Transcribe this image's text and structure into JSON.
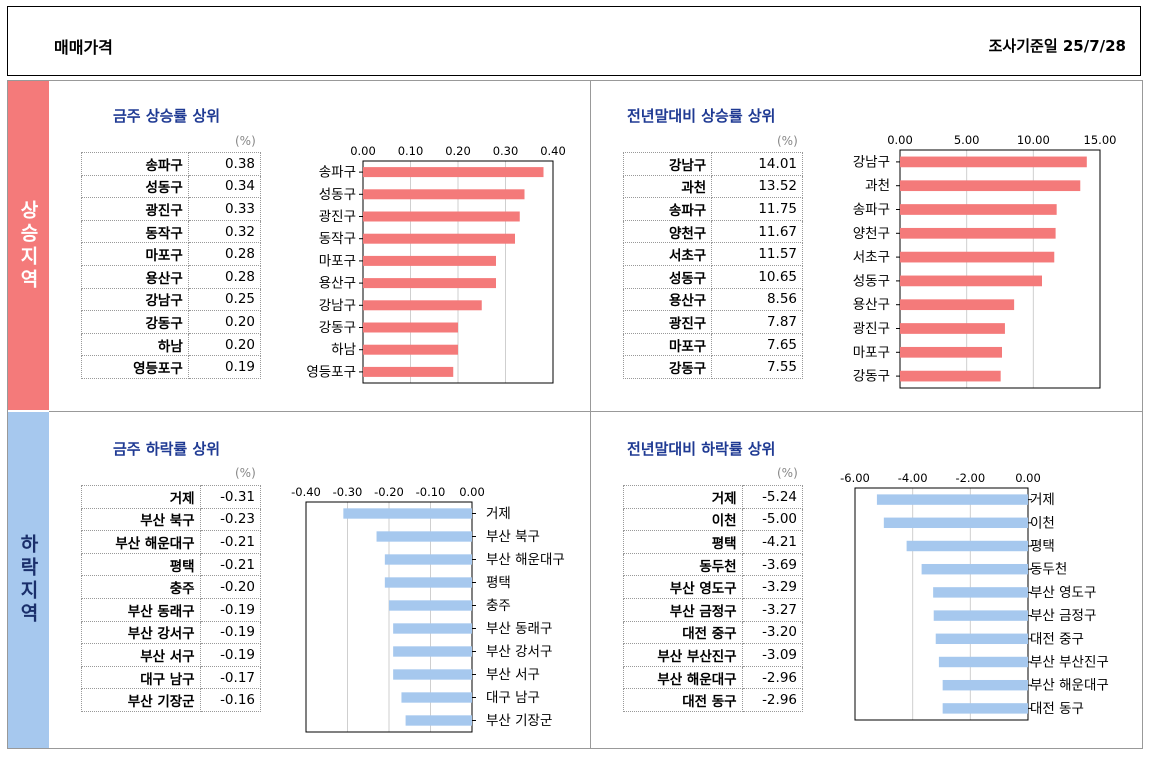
{
  "header": {
    "title": "매매가격",
    "reference_date": "조사기준일  25/7/28"
  },
  "bands": {
    "rise": "상승지역",
    "fall": "하락지역"
  },
  "panels": {
    "weekly_rise": {
      "title": "금주 상승률 상위",
      "unit": "(%)",
      "rows": [
        {
          "name": "송파구",
          "value": "0.38"
        },
        {
          "name": "성동구",
          "value": "0.34"
        },
        {
          "name": "광진구",
          "value": "0.33"
        },
        {
          "name": "동작구",
          "value": "0.32"
        },
        {
          "name": "마포구",
          "value": "0.28"
        },
        {
          "name": "용산구",
          "value": "0.28"
        },
        {
          "name": "강남구",
          "value": "0.25"
        },
        {
          "name": "강동구",
          "value": "0.20"
        },
        {
          "name": "하남",
          "value": "0.20"
        },
        {
          "name": "영등포구",
          "value": "0.19"
        }
      ]
    },
    "ytd_rise": {
      "title": "전년말대비 상승률 상위",
      "unit": "(%)",
      "rows": [
        {
          "name": "강남구",
          "value": "14.01"
        },
        {
          "name": "과천",
          "value": "13.52"
        },
        {
          "name": "송파구",
          "value": "11.75"
        },
        {
          "name": "양천구",
          "value": "11.67"
        },
        {
          "name": "서초구",
          "value": "11.57"
        },
        {
          "name": "성동구",
          "value": "10.65"
        },
        {
          "name": "용산구",
          "value": "8.56"
        },
        {
          "name": "광진구",
          "value": "7.87"
        },
        {
          "name": "마포구",
          "value": "7.65"
        },
        {
          "name": "강동구",
          "value": "7.55"
        }
      ]
    },
    "weekly_fall": {
      "title": "금주 하락률 상위",
      "unit": "(%)",
      "rows": [
        {
          "name": "거제",
          "value": "-0.31"
        },
        {
          "name": "부산 북구",
          "value": "-0.23"
        },
        {
          "name": "부산 해운대구",
          "value": "-0.21"
        },
        {
          "name": "평택",
          "value": "-0.21"
        },
        {
          "name": "충주",
          "value": "-0.20"
        },
        {
          "name": "부산 동래구",
          "value": "-0.19"
        },
        {
          "name": "부산 강서구",
          "value": "-0.19"
        },
        {
          "name": "부산 서구",
          "value": "-0.19"
        },
        {
          "name": "대구 남구",
          "value": "-0.17"
        },
        {
          "name": "부산 기장군",
          "value": "-0.16"
        }
      ]
    },
    "ytd_fall": {
      "title": "전년말대비 하락률 상위",
      "unit": "(%)",
      "rows": [
        {
          "name": "거제",
          "value": "-5.24"
        },
        {
          "name": "이천",
          "value": "-5.00"
        },
        {
          "name": "평택",
          "value": "-4.21"
        },
        {
          "name": "동두천",
          "value": "-3.69"
        },
        {
          "name": "부산 영도구",
          "value": "-3.29"
        },
        {
          "name": "부산 금정구",
          "value": "-3.27"
        },
        {
          "name": "대전 중구",
          "value": "-3.20"
        },
        {
          "name": "부산 부산진구",
          "value": "-3.09"
        },
        {
          "name": "부산 해운대구",
          "value": "-2.96"
        },
        {
          "name": "대전 동구",
          "value": "-2.96"
        }
      ]
    }
  },
  "chart_data": [
    {
      "type": "bar",
      "orientation": "horizontal",
      "title": "금주 상승률 상위",
      "categories": [
        "송파구",
        "성동구",
        "광진구",
        "동작구",
        "마포구",
        "용산구",
        "강남구",
        "강동구",
        "하남",
        "영등포구"
      ],
      "values": [
        0.38,
        0.34,
        0.33,
        0.32,
        0.28,
        0.28,
        0.25,
        0.2,
        0.2,
        0.19
      ],
      "xlim": [
        0,
        0.4
      ],
      "ticks": [
        "0.00",
        "0.10",
        "0.20",
        "0.30",
        "0.40"
      ],
      "color": "#f47a7a",
      "grid": true
    },
    {
      "type": "bar",
      "orientation": "horizontal",
      "title": "전년말대비 상승률 상위",
      "categories": [
        "강남구",
        "과천",
        "송파구",
        "양천구",
        "서초구",
        "성동구",
        "용산구",
        "광진구",
        "마포구",
        "강동구"
      ],
      "values": [
        14.01,
        13.52,
        11.75,
        11.67,
        11.57,
        10.65,
        8.56,
        7.87,
        7.65,
        7.55
      ],
      "xlim": [
        0,
        15
      ],
      "ticks": [
        "0.00",
        "5.00",
        "10.00",
        "15.00"
      ],
      "color": "#f47a7a",
      "grid": true
    },
    {
      "type": "bar",
      "orientation": "horizontal",
      "title": "금주 하락률 상위",
      "categories": [
        "거제",
        "부산 북구",
        "부산 해운대구",
        "평택",
        "충주",
        "부산 동래구",
        "부산 강서구",
        "부산 서구",
        "대구 남구",
        "부산 기장군"
      ],
      "values": [
        -0.31,
        -0.23,
        -0.21,
        -0.21,
        -0.2,
        -0.19,
        -0.19,
        -0.19,
        -0.17,
        -0.16
      ],
      "xlim": [
        -0.4,
        0
      ],
      "ticks": [
        "-0.40",
        "-0.30",
        "-0.20",
        "-0.10",
        "0.00"
      ],
      "color": "#a6c8ee",
      "grid": true
    },
    {
      "type": "bar",
      "orientation": "horizontal",
      "title": "전년말대비 하락률 상위",
      "categories": [
        "거제",
        "이천",
        "평택",
        "동두천",
        "부산 영도구",
        "부산 금정구",
        "대전 중구",
        "부산 부산진구",
        "부산 해운대구",
        "대전 동구"
      ],
      "values": [
        -5.24,
        -5.0,
        -4.21,
        -3.69,
        -3.29,
        -3.27,
        -3.2,
        -3.09,
        -2.96,
        -2.96
      ],
      "xlim": [
        -6,
        0
      ],
      "ticks": [
        "-6.00",
        "-4.00",
        "-2.00",
        "0.00"
      ],
      "color": "#a6c8ee",
      "grid": true
    }
  ]
}
